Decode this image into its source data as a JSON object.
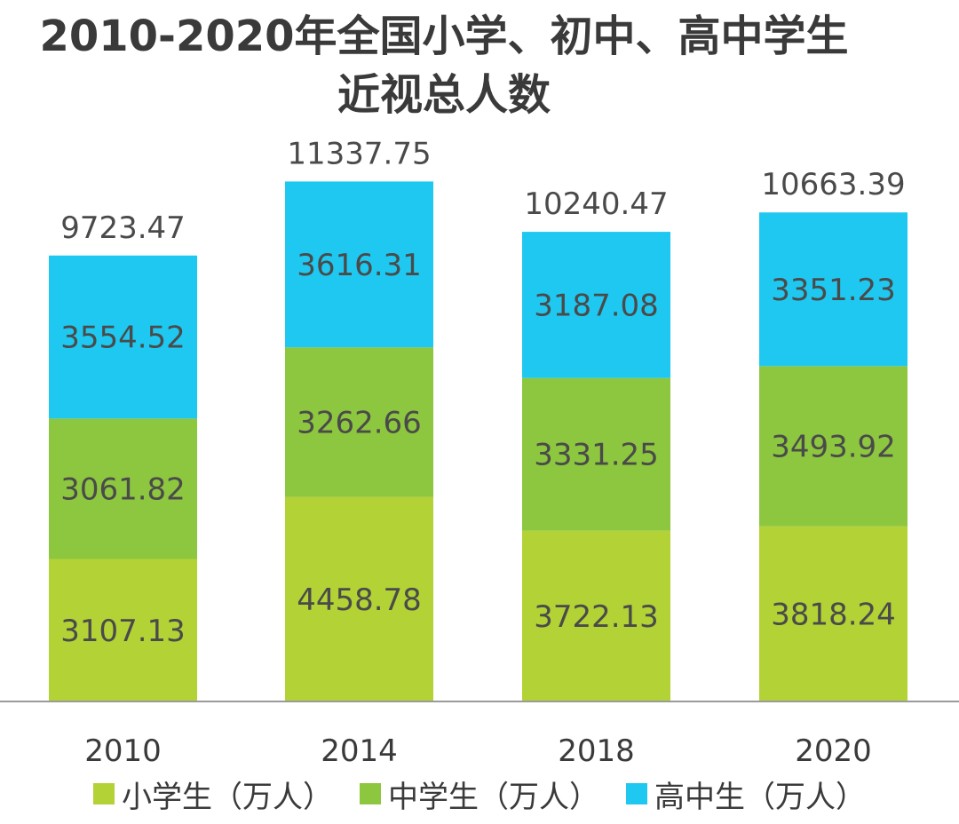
{
  "chart_data": {
    "type": "bar",
    "stacked": true,
    "title_lines": [
      "2010-2020年全国小学、初中、高中学生",
      "近视总人数"
    ],
    "categories": [
      "2010",
      "2014",
      "2018",
      "2020"
    ],
    "series": [
      {
        "name": "小学生（万人）",
        "color": "#b2d235",
        "values": [
          3107.13,
          4458.78,
          3722.13,
          3818.24
        ]
      },
      {
        "name": "中学生（万人）",
        "color": "#8dc63f",
        "values": [
          3061.82,
          3262.66,
          3331.25,
          3493.92
        ]
      },
      {
        "name": "高中生（万人）",
        "color": "#1ec8f0",
        "values": [
          3554.52,
          3616.31,
          3187.08,
          3351.23
        ]
      }
    ],
    "totals": [
      "9723.47",
      "11337.75",
      "10240.47",
      "10663.39"
    ],
    "ylim": [
      0,
      12000
    ],
    "grid": false,
    "legend_position": "bottom",
    "xlabel": "",
    "ylabel": ""
  }
}
